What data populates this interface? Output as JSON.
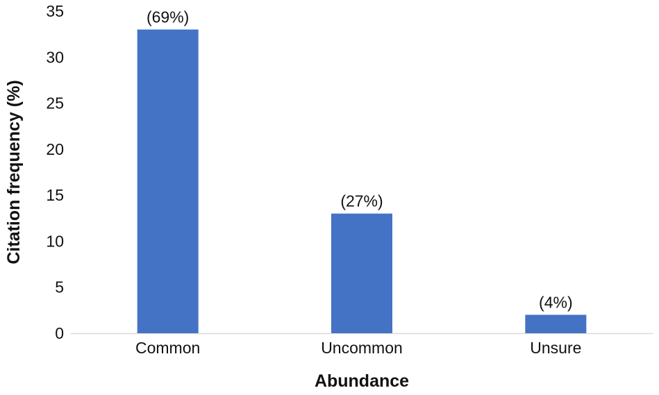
{
  "chart_data": {
    "type": "bar",
    "title": "",
    "xlabel": "Abundance",
    "ylabel": "Citation frequency (%)",
    "categories": [
      "Common",
      "Uncommon",
      "Unsure"
    ],
    "values": [
      33,
      13,
      2
    ],
    "data_labels": [
      "(69%)",
      "(27%)",
      "(4%)"
    ],
    "ylim": [
      0,
      35
    ],
    "yticks": [
      0,
      5,
      10,
      15,
      20,
      25,
      30,
      35
    ],
    "grid": false,
    "legend": "none",
    "colors": {
      "bar": "#4472C4",
      "axis": "#D9D9D9",
      "text": "#111111"
    }
  }
}
